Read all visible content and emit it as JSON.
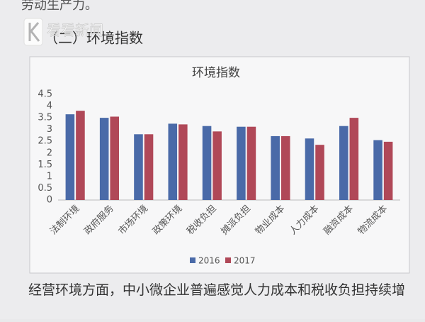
{
  "document": {
    "top_line": "劳动生产力。",
    "heading": "（二）环境指数",
    "watermark": "看看新闻",
    "bottom_line": "经营环境方面，中小微企业普遍感觉人力成本和税收负担持续增"
  },
  "chart_data": {
    "type": "bar",
    "title": "环境指数",
    "categories": [
      "法制环境",
      "政府服务",
      "市场环境",
      "政策环境",
      "税收负担",
      "摊派负担",
      "物业成本",
      "人力成本",
      "融资成本",
      "物流成本"
    ],
    "series": [
      {
        "name": "2016",
        "color": "#4a6aa8",
        "values": [
          3.65,
          3.5,
          2.8,
          3.25,
          3.15,
          3.12,
          2.72,
          2.62,
          3.15,
          2.55
        ]
      },
      {
        "name": "2017",
        "color": "#b04858",
        "values": [
          3.8,
          3.55,
          2.8,
          3.22,
          2.92,
          3.12,
          2.72,
          2.35,
          3.5,
          2.48
        ]
      }
    ],
    "ylim": [
      0,
      4.5
    ],
    "yticks": [
      0,
      0.5,
      1,
      1.5,
      2,
      2.5,
      3,
      3.5,
      4,
      4.5
    ],
    "grid": false,
    "legend": "bottom"
  }
}
